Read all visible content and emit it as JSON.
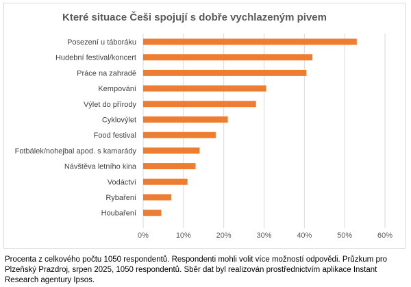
{
  "chart_data": {
    "type": "bar",
    "orientation": "horizontal",
    "title": "Které situace Češi spojují s dobře vychlazeným pivem",
    "categories": [
      "Posezení u táboráku",
      "Hudební festival/koncert",
      "Práce na zahradě",
      "Kempování",
      "Výlet do přírody",
      "Cyklovýlet",
      "Food festival",
      "Fotbálek/nohejbal apod. s kamarády",
      "Návštěva letního kina",
      "Vodáctví",
      "Rybaření",
      "Houbaření"
    ],
    "values": [
      53,
      42,
      40.5,
      30.5,
      28,
      21,
      18,
      14,
      13,
      11,
      7,
      4.5
    ],
    "xlim": [
      0,
      60
    ],
    "xticks": [
      0,
      10,
      20,
      30,
      40,
      50,
      60
    ],
    "xtick_labels": [
      "0%",
      "10%",
      "20%",
      "30%",
      "40%",
      "50%",
      "60%"
    ],
    "grid": true,
    "bar_color": "#ed7d31",
    "grid_color": "#d9d9d9",
    "legend": "none"
  },
  "footnote": "Procenta z celkového počtu 1050 respondentů. Respondenti mohli volit více možností odpovědi. Průzkum pro Plzeňský Prazdroj, srpen 2025, 1050 respondentů. Sběr dat byl realizován prostřednictvím aplikace Instant Research agentury Ipsos."
}
